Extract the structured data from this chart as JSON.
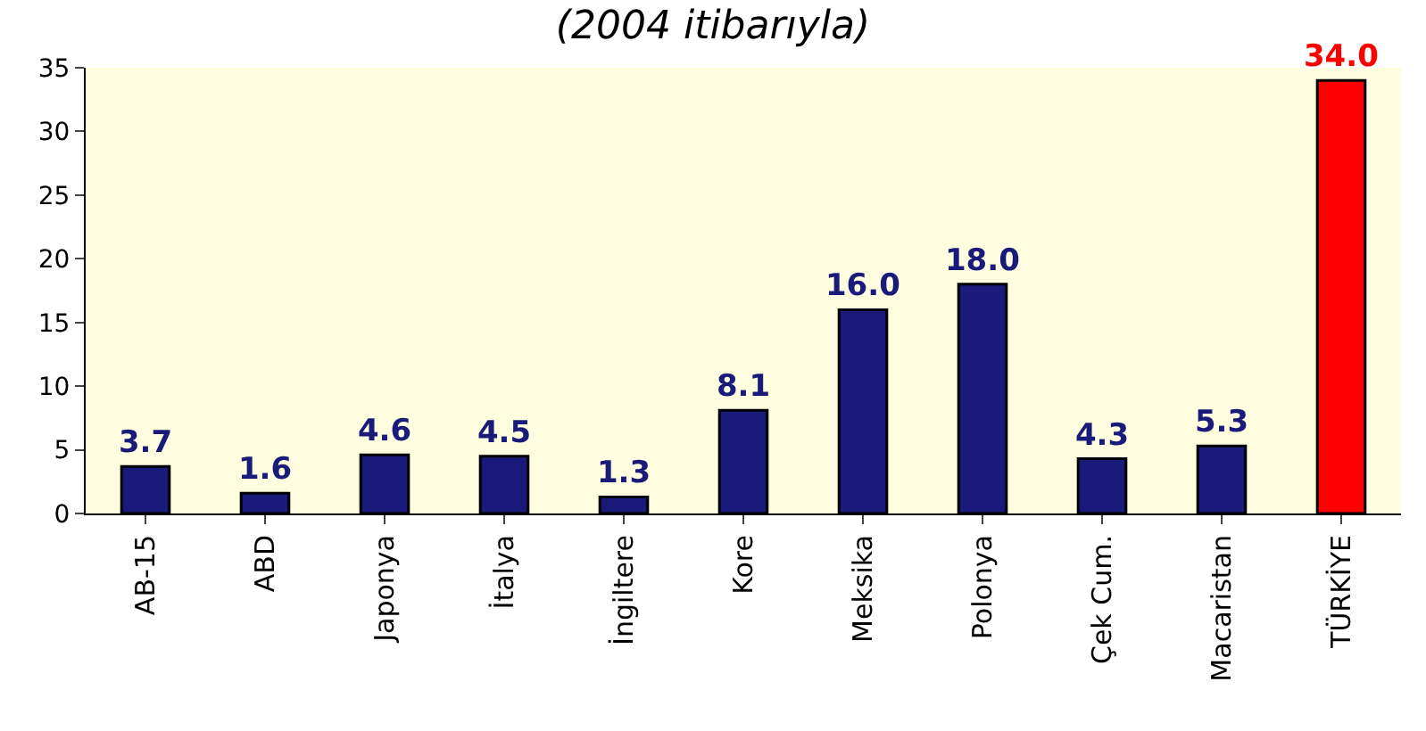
{
  "chart_data": {
    "type": "bar",
    "title": "(2004 itibarıyla)",
    "categories": [
      "AB-15",
      "ABD",
      "Japonya",
      "İtalya",
      "İngiltere",
      "Kore",
      "Meksika",
      "Polonya",
      "Çek Cum.",
      "Macaristan",
      "TÜRKİYE"
    ],
    "values": [
      3.7,
      1.6,
      4.6,
      4.5,
      1.3,
      8.1,
      16.0,
      18.0,
      4.3,
      5.3,
      34.0
    ],
    "value_labels": [
      "3.7",
      "1.6",
      "4.6",
      "4.5",
      "1.3",
      "8.1",
      "16.0",
      "18.0",
      "4.3",
      "5.3",
      "34.0"
    ],
    "colors": [
      "#1a1a7a",
      "#1a1a7a",
      "#1a1a7a",
      "#1a1a7a",
      "#1a1a7a",
      "#1a1a7a",
      "#1a1a7a",
      "#1a1a7a",
      "#1a1a7a",
      "#1a1a7a",
      "#ff0000"
    ],
    "ylim": [
      0,
      35
    ],
    "yticks": [
      0,
      5,
      10,
      15,
      20,
      25,
      30,
      35
    ],
    "grid": false
  }
}
